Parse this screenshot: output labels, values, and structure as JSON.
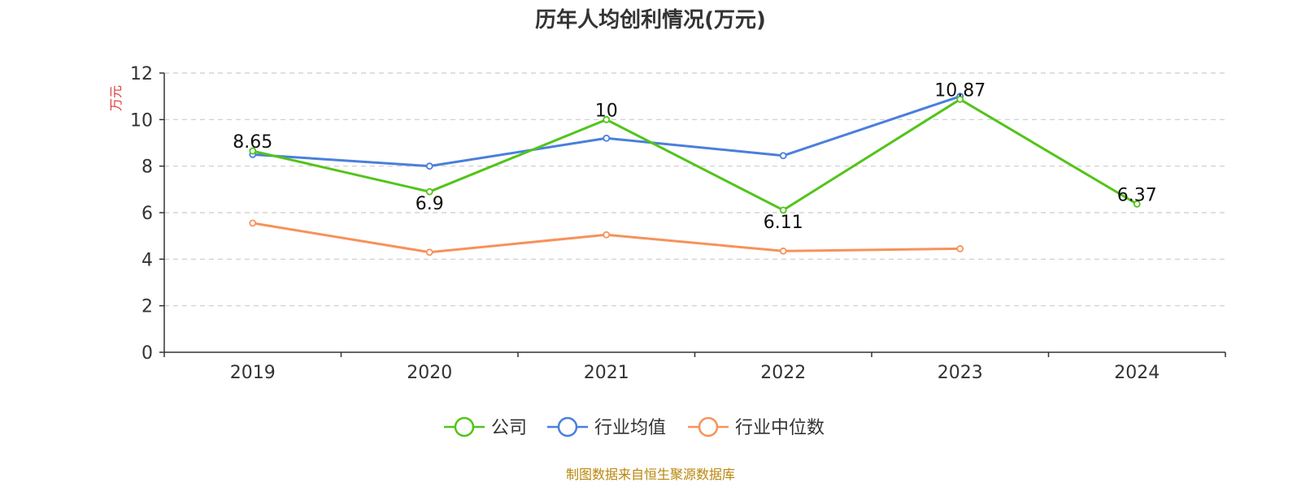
{
  "colors": {
    "company": "#52c41a",
    "industry_avg": "#4a7fdc",
    "industry_median": "#f79259",
    "ylabel": "#e23a3a",
    "source": "#b8860b",
    "grid": "#cccccc",
    "axis": "#333333"
  },
  "chart_data": {
    "type": "line",
    "title": "历年人均创利情况(万元)",
    "xlabel": "",
    "ylabel": "万元",
    "categories": [
      "2019",
      "2020",
      "2021",
      "2022",
      "2023",
      "2024"
    ],
    "ylim": [
      0,
      12
    ],
    "yticks": [
      0,
      2,
      4,
      6,
      8,
      10,
      12
    ],
    "grid": true,
    "legend_position": "bottom-center",
    "series": [
      {
        "name": "公司",
        "color_key": "company",
        "values": [
          8.65,
          6.9,
          10,
          6.11,
          10.87,
          6.37
        ],
        "labels": [
          "8.65",
          "6.9",
          "10",
          "6.11",
          "10.87",
          "6.37"
        ]
      },
      {
        "name": "行业均值",
        "color_key": "industry_avg",
        "values": [
          8.5,
          8.0,
          9.2,
          8.45,
          11.0,
          null
        ]
      },
      {
        "name": "行业中位数",
        "color_key": "industry_median",
        "values": [
          5.55,
          4.3,
          5.05,
          4.35,
          4.45,
          null
        ]
      }
    ]
  },
  "source_text": "制图数据来自恒生聚源数据库"
}
